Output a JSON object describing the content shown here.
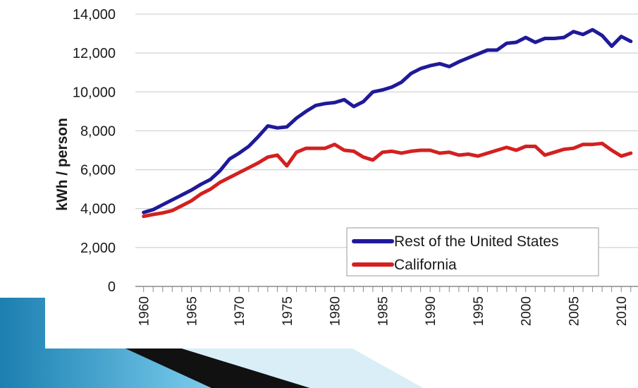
{
  "chart_data": {
    "type": "line",
    "title": "",
    "xlabel": "",
    "ylabel": "kWh / person",
    "xlim": [
      1960,
      2011
    ],
    "ylim": [
      0,
      14000
    ],
    "y_ticks": [
      "0",
      "2,000",
      "4,000",
      "6,000",
      "8,000",
      "10,000",
      "12,000",
      "14,000"
    ],
    "y_tick_values": [
      0,
      2000,
      4000,
      6000,
      8000,
      10000,
      12000,
      14000
    ],
    "x_ticks": [
      "1960",
      "1965",
      "1970",
      "1975",
      "1980",
      "1985",
      "1990",
      "1995",
      "2000",
      "2005",
      "2010"
    ],
    "x_tick_values": [
      1960,
      1965,
      1970,
      1975,
      1980,
      1985,
      1990,
      1995,
      2000,
      2005,
      2010
    ],
    "grid": "horizontal",
    "legend_position": "bottom-right",
    "x": [
      1960,
      1961,
      1962,
      1963,
      1964,
      1965,
      1966,
      1967,
      1968,
      1969,
      1970,
      1971,
      1972,
      1973,
      1974,
      1975,
      1976,
      1977,
      1978,
      1979,
      1980,
      1981,
      1982,
      1983,
      1984,
      1985,
      1986,
      1987,
      1988,
      1989,
      1990,
      1991,
      1992,
      1993,
      1994,
      1995,
      1996,
      1997,
      1998,
      1999,
      2000,
      2001,
      2002,
      2003,
      2004,
      2005,
      2006,
      2007,
      2008,
      2009,
      2010,
      2011
    ],
    "series": [
      {
        "name": "Rest of the United States",
        "color": "#1f1a99",
        "values": [
          3800,
          3950,
          4200,
          4450,
          4700,
          4950,
          5250,
          5500,
          5950,
          6550,
          6850,
          7200,
          7700,
          8250,
          8150,
          8200,
          8650,
          9000,
          9300,
          9400,
          9450,
          9600,
          9250,
          9500,
          10000,
          10100,
          10250,
          10500,
          10950,
          11200,
          11350,
          11450,
          11300,
          11550,
          11750,
          11950,
          12150,
          12150,
          12500,
          12550,
          12800,
          12550,
          12750,
          12750,
          12800,
          13100,
          12950,
          13200,
          12900,
          12350,
          12850,
          12600
        ]
      },
      {
        "name": "California",
        "color": "#d42020",
        "values": [
          3600,
          3700,
          3780,
          3900,
          4150,
          4400,
          4750,
          5000,
          5350,
          5600,
          5850,
          6100,
          6350,
          6650,
          6750,
          6200,
          6900,
          7100,
          7100,
          7100,
          7300,
          7000,
          6950,
          6650,
          6500,
          6900,
          6950,
          6850,
          6950,
          7000,
          7000,
          6850,
          6900,
          6750,
          6800,
          6700,
          6850,
          7000,
          7150,
          7000,
          7200,
          7200,
          6750,
          6900,
          7050,
          7100,
          7300,
          7300,
          7350,
          7000,
          6700,
          6850
        ]
      }
    ]
  }
}
